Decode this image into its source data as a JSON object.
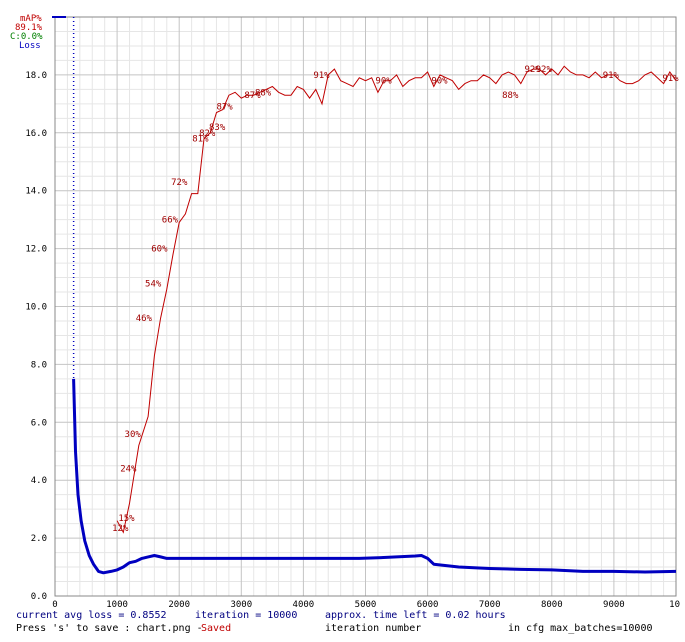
{
  "chart_data": {
    "type": "line",
    "xlabel": "iteration number",
    "ylabel": "",
    "xlim": [
      0,
      10000
    ],
    "ylim": [
      0,
      20
    ],
    "x_ticks": [
      "0",
      "1000",
      "2000",
      "3000",
      "4000",
      "5000",
      "6000",
      "7000",
      "8000",
      "9000",
      "10"
    ],
    "y_ticks": [
      "0.0",
      "2.0",
      "4.0",
      "6.0",
      "8.0",
      "10.0",
      "12.0",
      "14.0",
      "16.0",
      "18.0"
    ],
    "grid": true,
    "legend": {
      "placement": "top-left",
      "entries": [
        {
          "text": "mAP%",
          "color": "#c00000"
        },
        {
          "text": "89.1%",
          "color": "#c00000"
        },
        {
          "text": "C:0.0%",
          "color": "#008000"
        },
        {
          "text": "Loss",
          "color": "#0000c0"
        }
      ]
    },
    "series": [
      {
        "name": "Loss",
        "color": "#0000c0",
        "x": [
          300,
          330,
          370,
          420,
          480,
          550,
          620,
          700,
          780,
          900,
          1000,
          1100,
          1200,
          1300,
          1400,
          1500,
          1600,
          1700,
          1800,
          1900,
          2000,
          2200,
          2400,
          2600,
          2800,
          3000,
          3200,
          3500,
          3800,
          4000,
          4300,
          4600,
          4900,
          5200,
          5500,
          5800,
          5900,
          6000,
          6100,
          6300,
          6500,
          7000,
          7500,
          8000,
          8500,
          9000,
          9500,
          10000
        ],
        "y": [
          7.5,
          5.0,
          3.5,
          2.6,
          1.9,
          1.4,
          1.1,
          0.85,
          0.8,
          0.85,
          0.9,
          1.0,
          1.15,
          1.2,
          1.3,
          1.35,
          1.4,
          1.35,
          1.3,
          1.3,
          1.3,
          1.3,
          1.3,
          1.3,
          1.3,
          1.3,
          1.3,
          1.3,
          1.3,
          1.3,
          1.3,
          1.3,
          1.3,
          1.32,
          1.35,
          1.38,
          1.4,
          1.3,
          1.1,
          1.05,
          1.0,
          0.95,
          0.92,
          0.9,
          0.85,
          0.85,
          0.83,
          0.85
        ]
      },
      {
        "name": "mAP%",
        "color": "#c00000",
        "x": [
          1000,
          1100,
          1200,
          1350,
          1500,
          1600,
          1700,
          1800,
          1900,
          2000,
          2100,
          2200,
          2300,
          2400,
          2500,
          2600,
          2700,
          2800,
          2900,
          3000,
          3100,
          3200,
          3300,
          3400,
          3500,
          3600,
          3700,
          3800,
          3900,
          4000,
          4100,
          4200,
          4300,
          4400,
          4500,
          4600,
          4700,
          4800,
          4900,
          5000,
          5100,
          5200,
          5300,
          5400,
          5500,
          5600,
          5700,
          5800,
          5900,
          6000,
          6100,
          6200,
          6300,
          6400,
          6500,
          6600,
          6700,
          6800,
          6900,
          7000,
          7100,
          7200,
          7300,
          7400,
          7500,
          7600,
          7700,
          7800,
          7900,
          8000,
          8100,
          8200,
          8300,
          8400,
          8500,
          8600,
          8700,
          8800,
          8900,
          9000,
          9100,
          9200,
          9300,
          9400,
          9500,
          9600,
          9700,
          9800,
          9900,
          10000
        ],
        "y": [
          2.6,
          2.2,
          3.2,
          5.2,
          6.2,
          8.3,
          9.6,
          10.6,
          11.8,
          12.9,
          13.2,
          13.9,
          13.9,
          15.8,
          16.0,
          16.7,
          16.8,
          17.3,
          17.4,
          17.2,
          17.3,
          17.3,
          17.4,
          17.5,
          17.6,
          17.4,
          17.3,
          17.3,
          17.6,
          17.5,
          17.2,
          17.5,
          17.0,
          18.0,
          18.2,
          17.8,
          17.7,
          17.6,
          17.9,
          17.8,
          17.9,
          17.4,
          17.8,
          17.8,
          18.0,
          17.6,
          17.8,
          17.9,
          17.9,
          18.1,
          17.6,
          18.0,
          17.9,
          17.8,
          17.5,
          17.7,
          17.8,
          17.8,
          18.0,
          17.9,
          17.7,
          18.0,
          18.1,
          18.0,
          17.7,
          18.1,
          18.2,
          18.2,
          18.0,
          18.2,
          18.0,
          18.3,
          18.1,
          18.0,
          18.0,
          17.9,
          18.1,
          17.9,
          18.0,
          18.0,
          17.8,
          17.7,
          17.7,
          17.8,
          18.0,
          18.1,
          17.9,
          17.7,
          18.1,
          17.8
        ]
      }
    ],
    "annotations": [
      {
        "text": "12%",
        "x": 920,
        "y": 2.35
      },
      {
        "text": "15%",
        "x": 1020,
        "y": 2.7
      },
      {
        "text": "24%",
        "x": 1050,
        "y": 4.4
      },
      {
        "text": "30%",
        "x": 1120,
        "y": 5.6
      },
      {
        "text": "46%",
        "x": 1300,
        "y": 9.6
      },
      {
        "text": "54%",
        "x": 1450,
        "y": 10.8
      },
      {
        "text": "60%",
        "x": 1550,
        "y": 12.0
      },
      {
        "text": "66%",
        "x": 1720,
        "y": 13.0
      },
      {
        "text": "72%",
        "x": 1870,
        "y": 14.3
      },
      {
        "text": "81%",
        "x": 2210,
        "y": 15.8
      },
      {
        "text": "82%",
        "x": 2320,
        "y": 16.0
      },
      {
        "text": "83%",
        "x": 2480,
        "y": 16.2
      },
      {
        "text": "87%",
        "x": 2600,
        "y": 16.9
      },
      {
        "text": "87%",
        "x": 3050,
        "y": 17.3
      },
      {
        "text": "88%",
        "x": 3220,
        "y": 17.4
      },
      {
        "text": "91%",
        "x": 4160,
        "y": 18.0
      },
      {
        "text": "90%",
        "x": 5160,
        "y": 17.8
      },
      {
        "text": "90%",
        "x": 6060,
        "y": 17.8
      },
      {
        "text": "88%",
        "x": 7200,
        "y": 17.3
      },
      {
        "text": "92%",
        "x": 7560,
        "y": 18.2
      },
      {
        "text": "92%",
        "x": 7740,
        "y": 18.2
      },
      {
        "text": "91%",
        "x": 8820,
        "y": 18.0
      },
      {
        "text": "91%",
        "x": 9780,
        "y": 17.9
      }
    ]
  },
  "footer": {
    "line1": [
      {
        "text": "current avg loss = 0.8552",
        "color": "#000080"
      },
      {
        "text": "iteration = 10000",
        "color": "#000080"
      },
      {
        "text": "approx. time left = 0.02 hours",
        "color": "#000080"
      }
    ],
    "line2": [
      {
        "text": "Press 's' to save : chart.png - ",
        "color": "#000000"
      },
      {
        "text": "Saved",
        "color": "#c00000"
      },
      {
        "text": "iteration number",
        "color": "#000000"
      },
      {
        "text": "in cfg max_batches=10000",
        "color": "#000000"
      }
    ]
  }
}
